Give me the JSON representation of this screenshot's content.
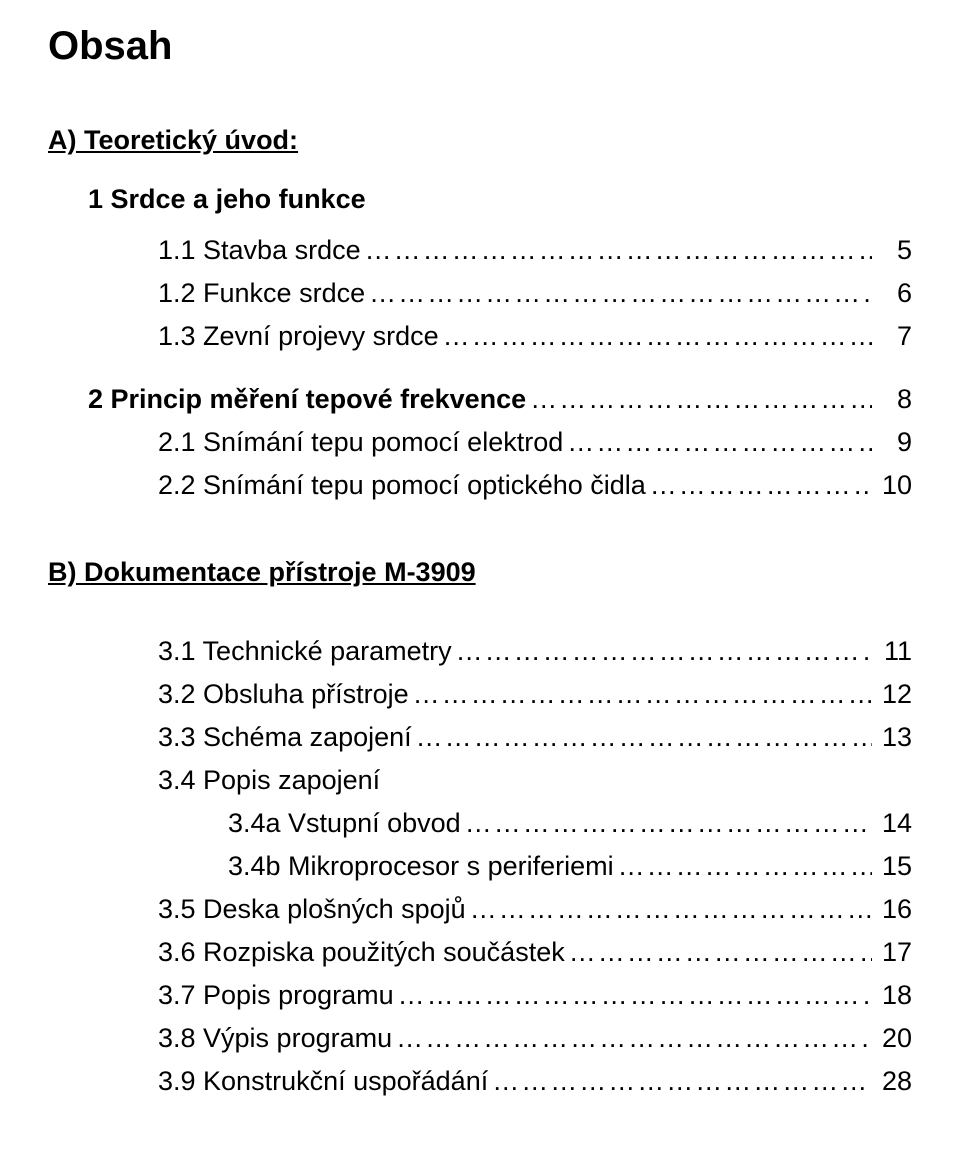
{
  "title": "Obsah",
  "sectionA": {
    "heading": "A) Teoretický úvod:",
    "group1": {
      "heading": "1 Srdce a jeho funkce",
      "items": [
        {
          "label": "1.1 Stavba srdce",
          "page": "5"
        },
        {
          "label": "1.2 Funkce srdce",
          "page": "6"
        },
        {
          "label": "1.3 Zevní projevy srdce",
          "page": "7"
        }
      ]
    },
    "group2": {
      "heading": "2 Princip měření tepové frekvence",
      "headingPage": "8",
      "items": [
        {
          "label": "2.1 Snímání tepu pomocí elektrod",
          "page": "9"
        },
        {
          "label": "2.2 Snímání tepu pomocí optického čidla",
          "page": "10"
        }
      ]
    }
  },
  "sectionB": {
    "heading": "B) Dokumentace přístroje M-3909",
    "items": [
      {
        "label": "3.1 Technické parametry",
        "page": "11",
        "indent": 0
      },
      {
        "label": "3.2 Obsluha přístroje",
        "page": "12",
        "indent": 0
      },
      {
        "label": "3.3 Schéma zapojení",
        "page": "13",
        "indent": 0
      },
      {
        "label": "3.4 Popis zapojení",
        "page": "",
        "indent": 0
      },
      {
        "label": "3.4a Vstupní obvod",
        "page": "14",
        "indent": 1
      },
      {
        "label": "3.4b Mikroprocesor s periferiemi",
        "page": "15",
        "indent": 1
      },
      {
        "label": "3.5 Deska plošných spojů",
        "page": "16",
        "indent": 0
      },
      {
        "label": "3.6 Rozpiska použitých součástek",
        "page": "17",
        "indent": 0
      },
      {
        "label": "3.7 Popis programu",
        "page": "18",
        "indent": 0
      },
      {
        "label": "3.8 Výpis programu",
        "page": "20",
        "indent": 0
      },
      {
        "label": "3.9 Konstrukční uspořádání",
        "page": "28",
        "indent": 0
      }
    ]
  },
  "dotsShort": "……………………………………………",
  "dotsMed": "…………………………………………………",
  "dotsLong": "………………………………………………………………"
}
